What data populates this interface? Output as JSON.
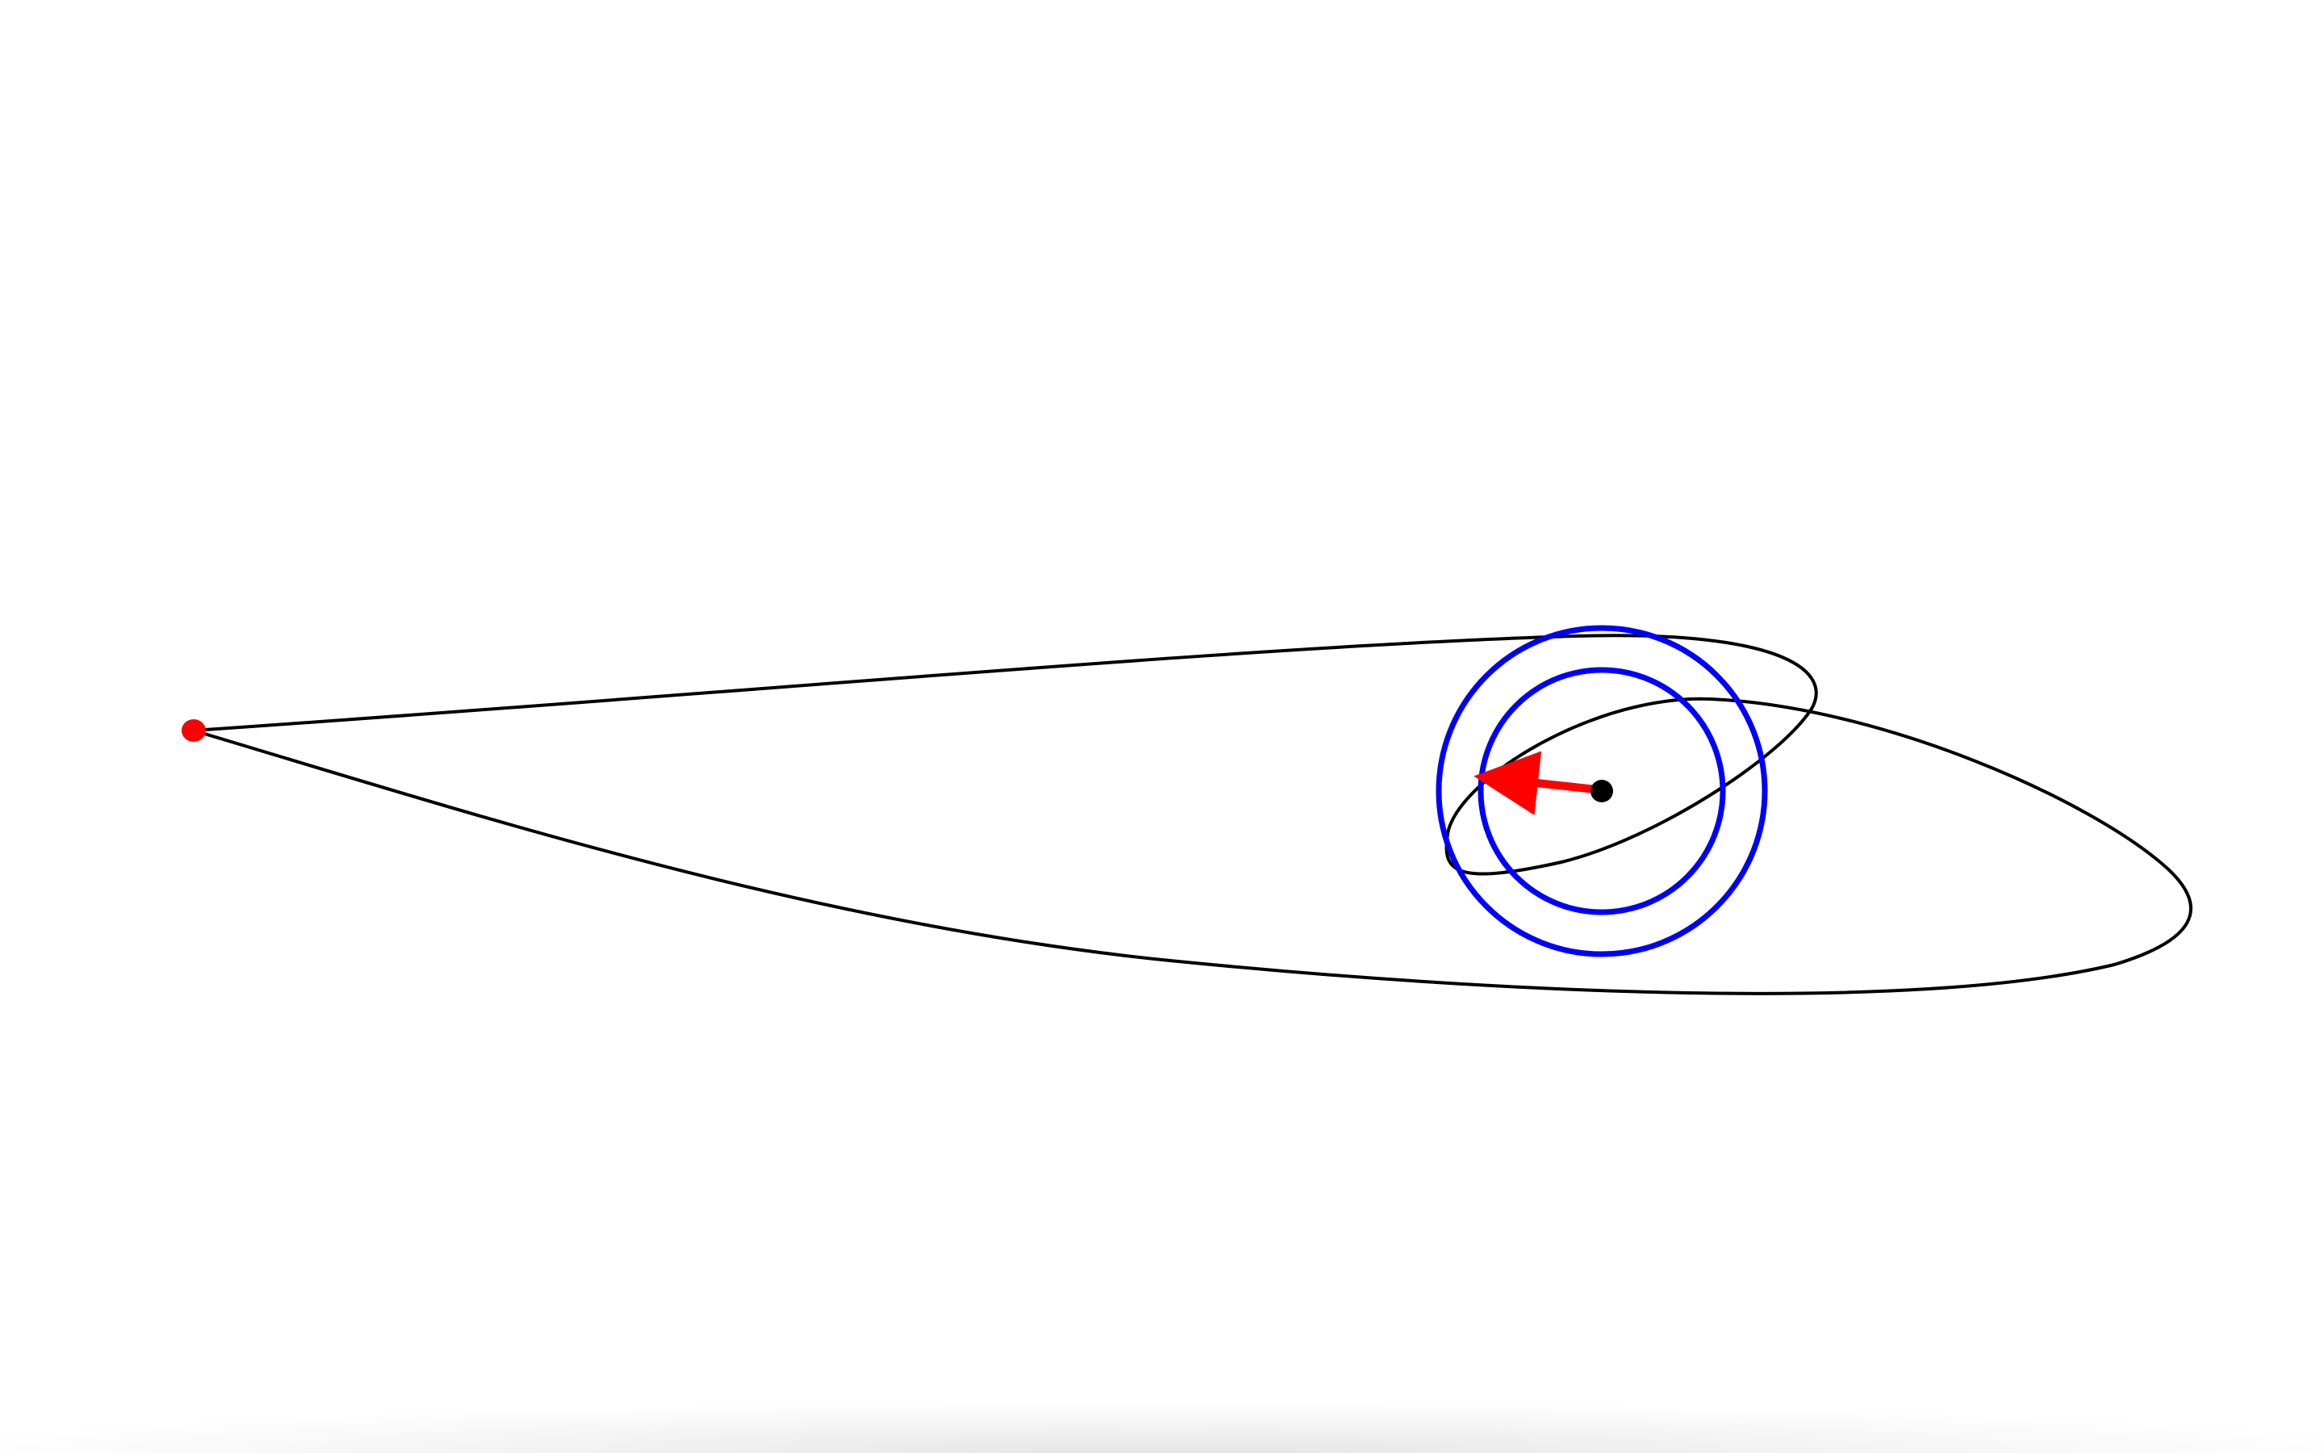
{
  "scene": {
    "background_color": "#ffffff",
    "bodies": [
      {
        "name": "spacecraft",
        "color": "#ff0000"
      },
      {
        "name": "central-body",
        "color": "#000000"
      }
    ],
    "orbits": {
      "color": "#000000",
      "count": 2
    },
    "rings": {
      "color": "#0000ff",
      "count": 2
    },
    "velocity_arrow": {
      "color": "#ff0000"
    }
  }
}
